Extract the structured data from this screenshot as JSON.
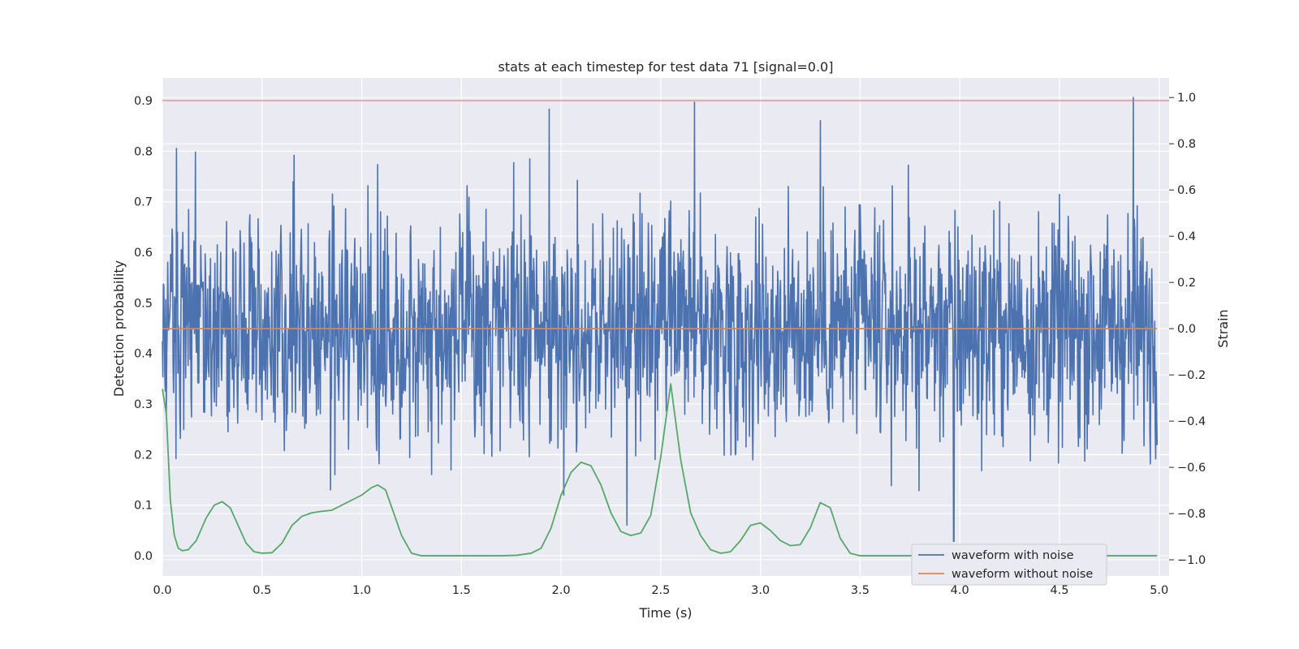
{
  "chart_data": {
    "type": "line",
    "title": "stats at each timestep for test data 71 [signal=0.0]",
    "xlabel": "Time (s)",
    "ylabel": "Detection probability",
    "y2label": "Strain",
    "xlim": [
      0.0,
      5.05
    ],
    "ylim": [
      -0.04,
      0.945
    ],
    "y2lim": [
      -1.07,
      1.085
    ],
    "x_ticks": [
      "0.0",
      "0.5",
      "1.0",
      "1.5",
      "2.0",
      "2.5",
      "3.0",
      "3.5",
      "4.0",
      "4.5",
      "5.0"
    ],
    "y_ticks": [
      "0.0",
      "0.1",
      "0.2",
      "0.3",
      "0.4",
      "0.5",
      "0.6",
      "0.7",
      "0.8",
      "0.9"
    ],
    "y2_ticks": [
      "−1.0",
      "−0.8",
      "−0.6",
      "−0.4",
      "−0.2",
      "0.0",
      "0.2",
      "0.4",
      "0.6",
      "0.8",
      "1.0"
    ],
    "grid": true,
    "legend_position": "lower-right",
    "threshold": {
      "y": 0.9,
      "color": "#e06666"
    },
    "series": [
      {
        "name": "waveform with noise",
        "axis": "right",
        "color": "#4c72b0",
        "description_values": {
          "samples": 2048,
          "mean": 0.0,
          "typical_range": [
            -0.4,
            0.4
          ],
          "peaks": [
            [
              0.07,
              0.78
            ],
            [
              0.66,
              0.75
            ],
            [
              1.08,
              0.71
            ],
            [
              1.94,
              0.95
            ],
            [
              2.67,
              0.98
            ],
            [
              3.3,
              0.9
            ],
            [
              4.87,
              1.0
            ],
            [
              3.97,
              -0.92
            ],
            [
              2.33,
              -0.85
            ]
          ]
        }
      },
      {
        "name": "waveform without noise",
        "axis": "right",
        "color": "#dd8452",
        "y_constant": 0.0
      },
      {
        "name": "",
        "axis": "left",
        "color": "#55a868",
        "x": [
          0.0,
          0.02,
          0.04,
          0.06,
          0.08,
          0.1,
          0.13,
          0.17,
          0.22,
          0.26,
          0.3,
          0.34,
          0.38,
          0.42,
          0.46,
          0.5,
          0.55,
          0.6,
          0.65,
          0.7,
          0.75,
          0.8,
          0.85,
          0.9,
          0.95,
          1.0,
          1.05,
          1.08,
          1.12,
          1.16,
          1.2,
          1.25,
          1.3,
          1.4,
          1.5,
          1.6,
          1.7,
          1.78,
          1.85,
          1.9,
          1.95,
          2.0,
          2.05,
          2.1,
          2.15,
          2.2,
          2.25,
          2.3,
          2.35,
          2.4,
          2.45,
          2.5,
          2.55,
          2.6,
          2.65,
          2.7,
          2.75,
          2.8,
          2.85,
          2.9,
          2.95,
          3.0,
          3.05,
          3.1,
          3.15,
          3.2,
          3.25,
          3.3,
          3.35,
          3.4,
          3.45,
          3.5,
          3.6,
          3.8,
          4.0,
          4.5,
          4.99
        ],
        "y": [
          0.33,
          0.28,
          0.11,
          0.04,
          0.015,
          0.01,
          0.012,
          0.03,
          0.075,
          0.1,
          0.107,
          0.095,
          0.06,
          0.025,
          0.008,
          0.005,
          0.006,
          0.025,
          0.06,
          0.078,
          0.085,
          0.088,
          0.09,
          0.1,
          0.11,
          0.12,
          0.135,
          0.14,
          0.13,
          0.085,
          0.04,
          0.005,
          0.0,
          0.0,
          0.0,
          0.0,
          0.0,
          0.001,
          0.005,
          0.015,
          0.055,
          0.12,
          0.165,
          0.185,
          0.178,
          0.14,
          0.085,
          0.048,
          0.04,
          0.045,
          0.08,
          0.195,
          0.34,
          0.19,
          0.085,
          0.04,
          0.012,
          0.005,
          0.008,
          0.03,
          0.06,
          0.065,
          0.05,
          0.03,
          0.02,
          0.022,
          0.055,
          0.105,
          0.095,
          0.035,
          0.005,
          0.0,
          0.0,
          0.0,
          0.0,
          0.0,
          0.0
        ]
      }
    ]
  }
}
